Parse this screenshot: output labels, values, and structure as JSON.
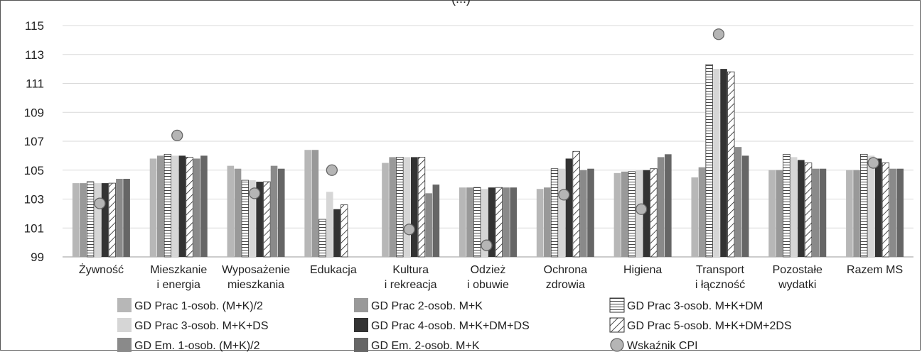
{
  "chart_data": {
    "type": "bar",
    "title": "(...)",
    "xlabel": "",
    "ylabel": "",
    "ylim": [
      99,
      115
    ],
    "yticks": [
      99,
      101,
      103,
      105,
      107,
      109,
      111,
      113,
      115
    ],
    "grid": true,
    "legend_position": "bottom",
    "categories": [
      [
        "Żywność"
      ],
      [
        "Mieszkanie",
        "i energia"
      ],
      [
        "Wyposażenie",
        "mieszkania"
      ],
      [
        "Edukacja"
      ],
      [
        "Kultura",
        "i rekreacja"
      ],
      [
        "Odzież",
        "i obuwie"
      ],
      [
        "Ochrona",
        "zdrowia"
      ],
      [
        "Higiena"
      ],
      [
        "Transport",
        "i łączność"
      ],
      [
        "Pozostałe",
        "wydatki"
      ],
      [
        "Razem MS"
      ]
    ],
    "series": [
      {
        "name": "GD Prac 1-osob. (M+K)/2",
        "color": "#b7b7b7",
        "pattern": "solid",
        "values": [
          104.1,
          105.8,
          105.3,
          106.4,
          105.5,
          103.8,
          103.7,
          104.8,
          104.5,
          105.0,
          105.0
        ]
      },
      {
        "name": "GD Prac 2-osob. M+K",
        "color": "#999999",
        "pattern": "solid",
        "values": [
          104.1,
          106.0,
          105.1,
          106.4,
          105.9,
          103.8,
          103.8,
          104.9,
          105.2,
          105.0,
          105.0
        ]
      },
      {
        "name": "GD Prac 3-osob. M+K+DM",
        "color": "#ffffff",
        "pattern": "horizontal-lines",
        "values": [
          104.2,
          106.1,
          104.3,
          101.6,
          105.9,
          103.8,
          105.1,
          104.9,
          112.3,
          106.1,
          106.1
        ]
      },
      {
        "name": "GD Prac 3-osob. M+K+DS",
        "color": "#d6d6d6",
        "pattern": "solid",
        "values": [
          104.1,
          106.0,
          104.3,
          103.5,
          105.9,
          103.7,
          105.1,
          105.0,
          112.0,
          105.9,
          106.0
        ]
      },
      {
        "name": "GD Prac 4-osob. M+K+DM+DS",
        "color": "#333333",
        "pattern": "solid",
        "values": [
          104.1,
          106.0,
          104.2,
          102.3,
          105.9,
          103.8,
          105.8,
          105.0,
          112.0,
          105.7,
          105.8
        ]
      },
      {
        "name": "GD Prac 5-osob. M+K+DM+2DS",
        "color": "#ffffff",
        "pattern": "diagonal-lines",
        "values": [
          104.1,
          105.9,
          104.2,
          102.6,
          105.9,
          103.8,
          106.3,
          105.1,
          111.8,
          105.5,
          105.5
        ]
      },
      {
        "name": "GD Em. 1-osob. (M+K)/2",
        "color": "#8a8a8a",
        "pattern": "solid",
        "values": [
          104.4,
          105.8,
          105.3,
          null,
          103.4,
          103.8,
          105.0,
          105.9,
          106.6,
          105.1,
          105.1
        ]
      },
      {
        "name": "GD Em. 2-osob. M+K",
        "color": "#666666",
        "pattern": "solid",
        "values": [
          104.4,
          106.0,
          105.1,
          null,
          104.0,
          103.8,
          105.1,
          106.1,
          106.0,
          105.1,
          105.1
        ]
      }
    ],
    "cpi": {
      "name": "Wskaźnik CPI",
      "color": "#b5b5b5",
      "values": [
        102.7,
        107.4,
        103.4,
        105.0,
        100.9,
        99.8,
        103.3,
        102.3,
        114.4,
        null,
        105.5
      ]
    }
  }
}
